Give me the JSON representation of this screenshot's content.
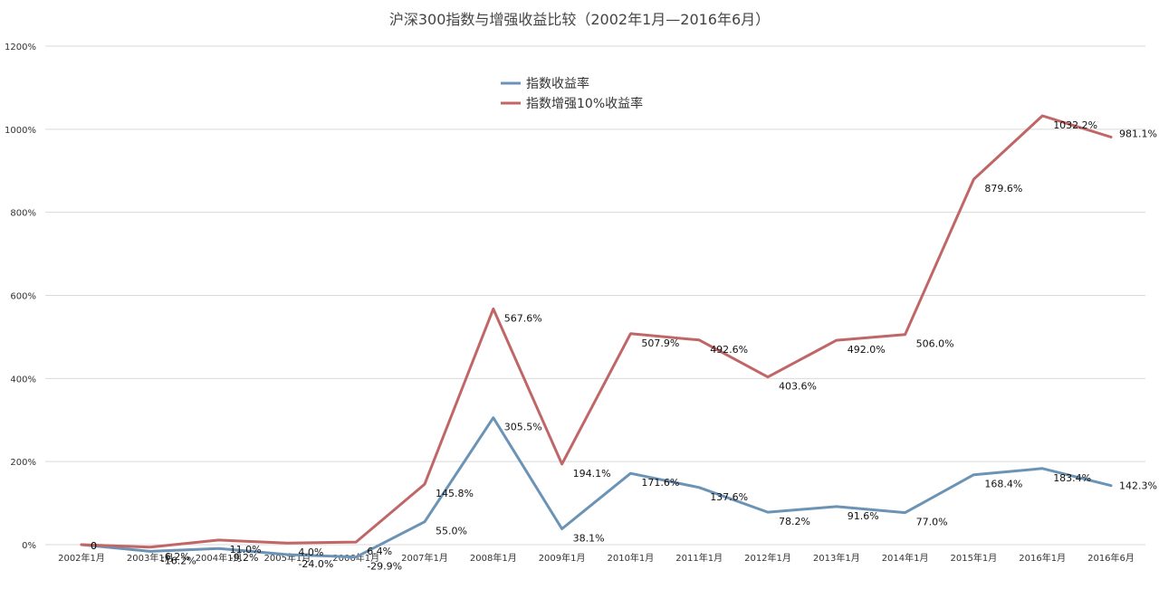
{
  "chart_data": {
    "type": "line",
    "title": "沪深300指数与增强收益比较（2002年1月—2016年6月）",
    "xlabel": "",
    "ylabel": "",
    "categories": [
      "2002年1月",
      "2003年1月",
      "2004年1月",
      "2005年1月",
      "2006年1月",
      "2007年1月",
      "2008年1月",
      "2009年1月",
      "2010年1月",
      "2011年1月",
      "2012年1月",
      "2013年1月",
      "2014年1月",
      "2015年1月",
      "2016年1月",
      "2016年6月"
    ],
    "y_ticks": [
      "0%",
      "200%",
      "400%",
      "600%",
      "800%",
      "1000%",
      "1200%"
    ],
    "ylim": [
      0,
      1200
    ],
    "grid": true,
    "legend_position": "top-center",
    "series": [
      {
        "name": "指数收益率",
        "color": "#6b93b5",
        "values": [
          0,
          -16.2,
          -9.2,
          -24.0,
          -29.9,
          55.0,
          305.5,
          38.1,
          171.6,
          137.6,
          78.2,
          91.6,
          77.0,
          168.4,
          183.4,
          142.3
        ],
        "labels": [
          "0",
          "-16.2%",
          "-9.2%",
          "-24.0%",
          "-29.9%",
          "55.0%",
          "305.5%",
          "38.1%",
          "171.6%",
          "137.6%",
          "78.2%",
          "91.6%",
          "77.0%",
          "168.4%",
          "183.4%",
          "142.3%"
        ]
      },
      {
        "name": "指数增强10%收益率",
        "color": "#c06666",
        "values": [
          0,
          -6.2,
          11.0,
          4.0,
          6.4,
          145.8,
          567.6,
          194.1,
          507.9,
          492.6,
          403.6,
          492.0,
          506.0,
          879.6,
          1032.2,
          981.1
        ],
        "labels": [
          "0",
          "-6.2%",
          "11.0%",
          "4.0%",
          "6.4%",
          "145.8%",
          "567.6%",
          "194.1%",
          "507.9%",
          "492.6%",
          "403.6%",
          "492.0%",
          "506.0%",
          "879.6%",
          "1032.2%",
          "981.1%"
        ]
      }
    ]
  }
}
